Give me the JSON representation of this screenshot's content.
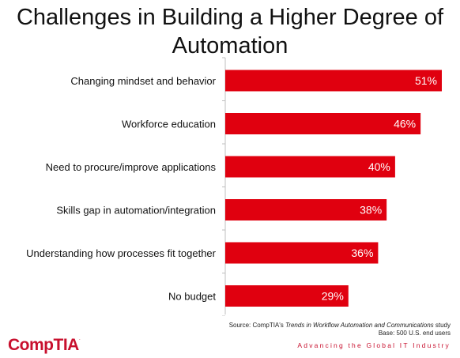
{
  "title": "Challenges in Building a Higher Degree of Automation",
  "chart_data": {
    "type": "bar",
    "orientation": "horizontal",
    "categories": [
      "Changing mindset and behavior",
      "Workforce education",
      "Need to procure/improve applications",
      "Skills gap in automation/integration",
      "Understanding how processes fit together",
      "No budget"
    ],
    "values": [
      51,
      46,
      40,
      38,
      36,
      29
    ],
    "value_labels": [
      "51%",
      "46%",
      "40%",
      "38%",
      "36%",
      "29%"
    ],
    "xlim": [
      0,
      55
    ],
    "bar_color": "#e0000f",
    "grid": false
  },
  "footer": {
    "source_prefix": "Source: CompTIA's ",
    "source_title": "Trends in Workflow Automation and Communications",
    "source_suffix": " study",
    "base": "Base: 500 U.S. end users",
    "tagline": "Advancing the Global IT Industry",
    "logo": "CompTIA",
    "logo_mark": "."
  },
  "colors": {
    "brand": "#c8102e"
  }
}
